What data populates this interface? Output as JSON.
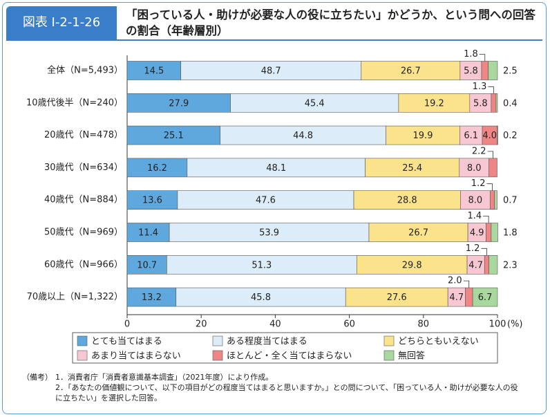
{
  "header": {
    "tag": "図表 I-2-1-26"
  },
  "chart_data": {
    "type": "stacked-bar-horizontal",
    "title": "「困っている人・助けが必要な人の役に立ちたい」かどうか、という問への回答の割合（年齢層別）",
    "categories": [
      "全体（N=5,493）",
      "10歳代後半（N=240）",
      "20歳代（N=478）",
      "30歳代（N=634）",
      "40歳代（N=884）",
      "50歳代（N=969）",
      "60歳代（N=966）",
      "70歳以上（N=1,322）"
    ],
    "series": [
      {
        "name": "とても当てはまる",
        "color": "#5fa8de",
        "values": [
          14.5,
          27.9,
          25.1,
          16.2,
          13.6,
          11.4,
          10.7,
          13.2
        ],
        "value_labels": [
          "14.5",
          "27.9",
          "25.1",
          "16.2",
          "13.6",
          "11.4",
          "10.7",
          "13.2"
        ]
      },
      {
        "name": "ある程度当てはまる",
        "color": "#dcecf8",
        "values": [
          48.7,
          45.4,
          44.8,
          48.1,
          47.6,
          53.9,
          51.3,
          45.8
        ],
        "value_labels": [
          "48.7",
          "45.4",
          "44.8",
          "48.1",
          "47.6",
          "53.9",
          "51.3",
          "45.8"
        ]
      },
      {
        "name": "どちらともいえない",
        "color": "#fbe38c",
        "values": [
          26.7,
          19.2,
          19.9,
          25.4,
          28.8,
          26.7,
          29.8,
          27.6
        ],
        "value_labels": [
          "26.7",
          "19.2",
          "19.9",
          "25.4",
          "28.8",
          "26.7",
          "29.8",
          "27.6"
        ]
      },
      {
        "name": "あまり当てはまらない",
        "color": "#f8c8d2",
        "values": [
          5.8,
          5.8,
          6.1,
          8.0,
          8.0,
          4.9,
          4.7,
          4.7
        ],
        "value_labels": [
          "5.8",
          "5.8",
          "6.1",
          "8.0",
          "8.0",
          "4.9",
          "4.7",
          "4.7"
        ]
      },
      {
        "name": "ほとんど・全く当てはまらない",
        "color": "#ee8686",
        "values": [
          1.8,
          1.3,
          4.0,
          2.2,
          1.2,
          1.4,
          1.2,
          2.0
        ],
        "value_labels": [
          "1.8",
          "1.3",
          "4.0",
          "2.2",
          "1.2",
          "1.4",
          "1.2",
          "2.0"
        ]
      },
      {
        "name": "無回答",
        "color": "#a9d89f",
        "values": [
          2.5,
          0.4,
          0.2,
          null,
          0.7,
          1.8,
          2.3,
          6.7
        ],
        "value_labels": [
          "2.5",
          "0.4",
          "0.2",
          null,
          "0.7",
          "1.8",
          "2.3",
          "6.7"
        ]
      }
    ],
    "xlim": [
      0,
      100
    ],
    "xticks": [
      0,
      20,
      40,
      60,
      80,
      100
    ],
    "x_unit": "(%)"
  },
  "notes": {
    "label": "（備考）",
    "items": [
      "1．消費者庁「消費者意識基本調査」（2021年度）により作成。",
      "2．「あなたの価値観について、以下の項目がどの程度当てはまると思いますか。」との問について、「困っている人・助けが必要な人の役に立ちたい」を選択した回答。"
    ]
  }
}
